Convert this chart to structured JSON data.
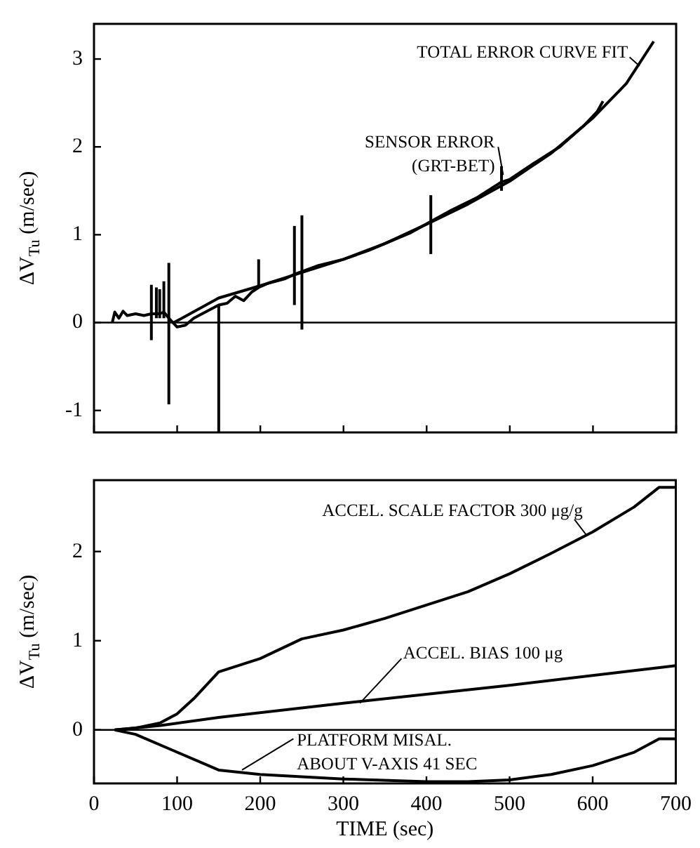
{
  "chart_data": [
    {
      "type": "line",
      "ylabel": "ΔV$_{Tu}$ (m/sec)",
      "xlim": [
        0,
        700
      ],
      "xticks": [
        0,
        100,
        200,
        300,
        400,
        500,
        600,
        700
      ],
      "ylim": [
        -1.25,
        3.4
      ],
      "yticks": [
        -1,
        0,
        1,
        2,
        3
      ],
      "tick_labels": "y",
      "grid": false,
      "legend": "top right",
      "marker": "none",
      "line_style": "solid",
      "ref_lines": [
        {
          "axis": "y",
          "value": 0,
          "color": "#000000"
        }
      ],
      "series": [
        {
          "name": "SENSOR ERROR\n(GRT-BET)",
          "color": "#000000",
          "x": [
            22,
            25,
            30,
            35,
            40,
            50,
            60,
            69,
            75,
            79,
            84,
            90,
            100,
            110,
            120,
            130,
            140,
            150,
            160,
            170,
            180,
            190,
            198,
            210,
            230,
            241,
            250,
            270,
            300,
            330,
            350,
            380,
            405,
            430,
            460,
            490,
            500,
            530,
            560,
            590,
            605,
            612
          ],
          "values": [
            0.0,
            0.12,
            0.05,
            0.13,
            0.08,
            0.1,
            0.08,
            0.1,
            0.1,
            0.1,
            0.12,
            0.05,
            -0.05,
            -0.03,
            0.05,
            0.1,
            0.15,
            0.2,
            0.22,
            0.3,
            0.25,
            0.35,
            0.4,
            0.45,
            0.5,
            0.55,
            0.58,
            0.65,
            0.72,
            0.82,
            0.9,
            1.02,
            1.15,
            1.28,
            1.42,
            1.6,
            1.63,
            1.82,
            2.0,
            2.25,
            2.4,
            2.52
          ],
          "errors": [
            null,
            null,
            null,
            null,
            null,
            null,
            null,
            [
              -0.2,
              0.43
            ],
            [
              0.05,
              0.4
            ],
            [
              0.05,
              0.38
            ],
            [
              0.05,
              0.47
            ],
            [
              -0.93,
              0.68
            ],
            null,
            null,
            null,
            null,
            null,
            [
              -1.25,
              0.2
            ],
            null,
            null,
            null,
            null,
            [
              0.4,
              0.72
            ],
            null,
            null,
            [
              0.2,
              1.1
            ],
            [
              -0.08,
              1.22
            ],
            null,
            null,
            null,
            null,
            null,
            [
              0.78,
              1.45
            ],
            null,
            null,
            [
              1.5,
              1.78
            ],
            null,
            null,
            null,
            null,
            null,
            null
          ]
        },
        {
          "name": "TOTAL ERROR CURVE FIT",
          "color": "#000000",
          "x": [
            96,
            150,
            200,
            250,
            300,
            350,
            400,
            450,
            500,
            550,
            600,
            640,
            673
          ],
          "values": [
            0,
            0.28,
            0.42,
            0.57,
            0.72,
            0.9,
            1.12,
            1.35,
            1.61,
            1.93,
            2.33,
            2.72,
            3.2
          ]
        }
      ]
    },
    {
      "type": "line",
      "xlabel": "TIME (sec)",
      "ylabel": "ΔV$_{Tu}$ (m/sec)",
      "xlim": [
        0,
        700
      ],
      "xticks": [
        0,
        100,
        200,
        300,
        400,
        500,
        600,
        700
      ],
      "ylim": [
        -0.6,
        2.8
      ],
      "yticks": [
        0,
        1,
        2
      ],
      "grid": false,
      "marker": "none",
      "line_style": "solid",
      "ref_lines": [
        {
          "axis": "y",
          "value": 0,
          "color": "#000000"
        }
      ],
      "series": [
        {
          "name": "ACCEL. SCALE FACTOR 300 μg/g",
          "color": "#000000",
          "x": [
            25,
            50,
            80,
            100,
            120,
            140,
            150,
            200,
            250,
            300,
            350,
            400,
            450,
            500,
            550,
            600,
            650,
            680,
            700
          ],
          "values": [
            0,
            0.02,
            0.08,
            0.18,
            0.35,
            0.55,
            0.65,
            0.8,
            1.02,
            1.12,
            1.25,
            1.4,
            1.55,
            1.75,
            1.98,
            2.22,
            2.5,
            2.72,
            2.72
          ]
        },
        {
          "name": "ACCEL. BIAS 100 μg",
          "color": "#000000",
          "x": [
            25,
            80,
            150,
            300,
            500,
            700
          ],
          "values": [
            0,
            0.05,
            0.14,
            0.3,
            0.5,
            0.72
          ]
        },
        {
          "name": "PLATFORM MISAL.\nABOUT V-AXIS 41 SEC",
          "color": "#000000",
          "x": [
            25,
            50,
            100,
            150,
            200,
            300,
            400,
            450,
            500,
            550,
            600,
            650,
            680,
            700
          ],
          "values": [
            0,
            -0.05,
            -0.25,
            -0.45,
            -0.5,
            -0.55,
            -0.58,
            -0.58,
            -0.56,
            -0.5,
            -0.4,
            -0.25,
            -0.1,
            -0.1
          ]
        }
      ]
    }
  ]
}
